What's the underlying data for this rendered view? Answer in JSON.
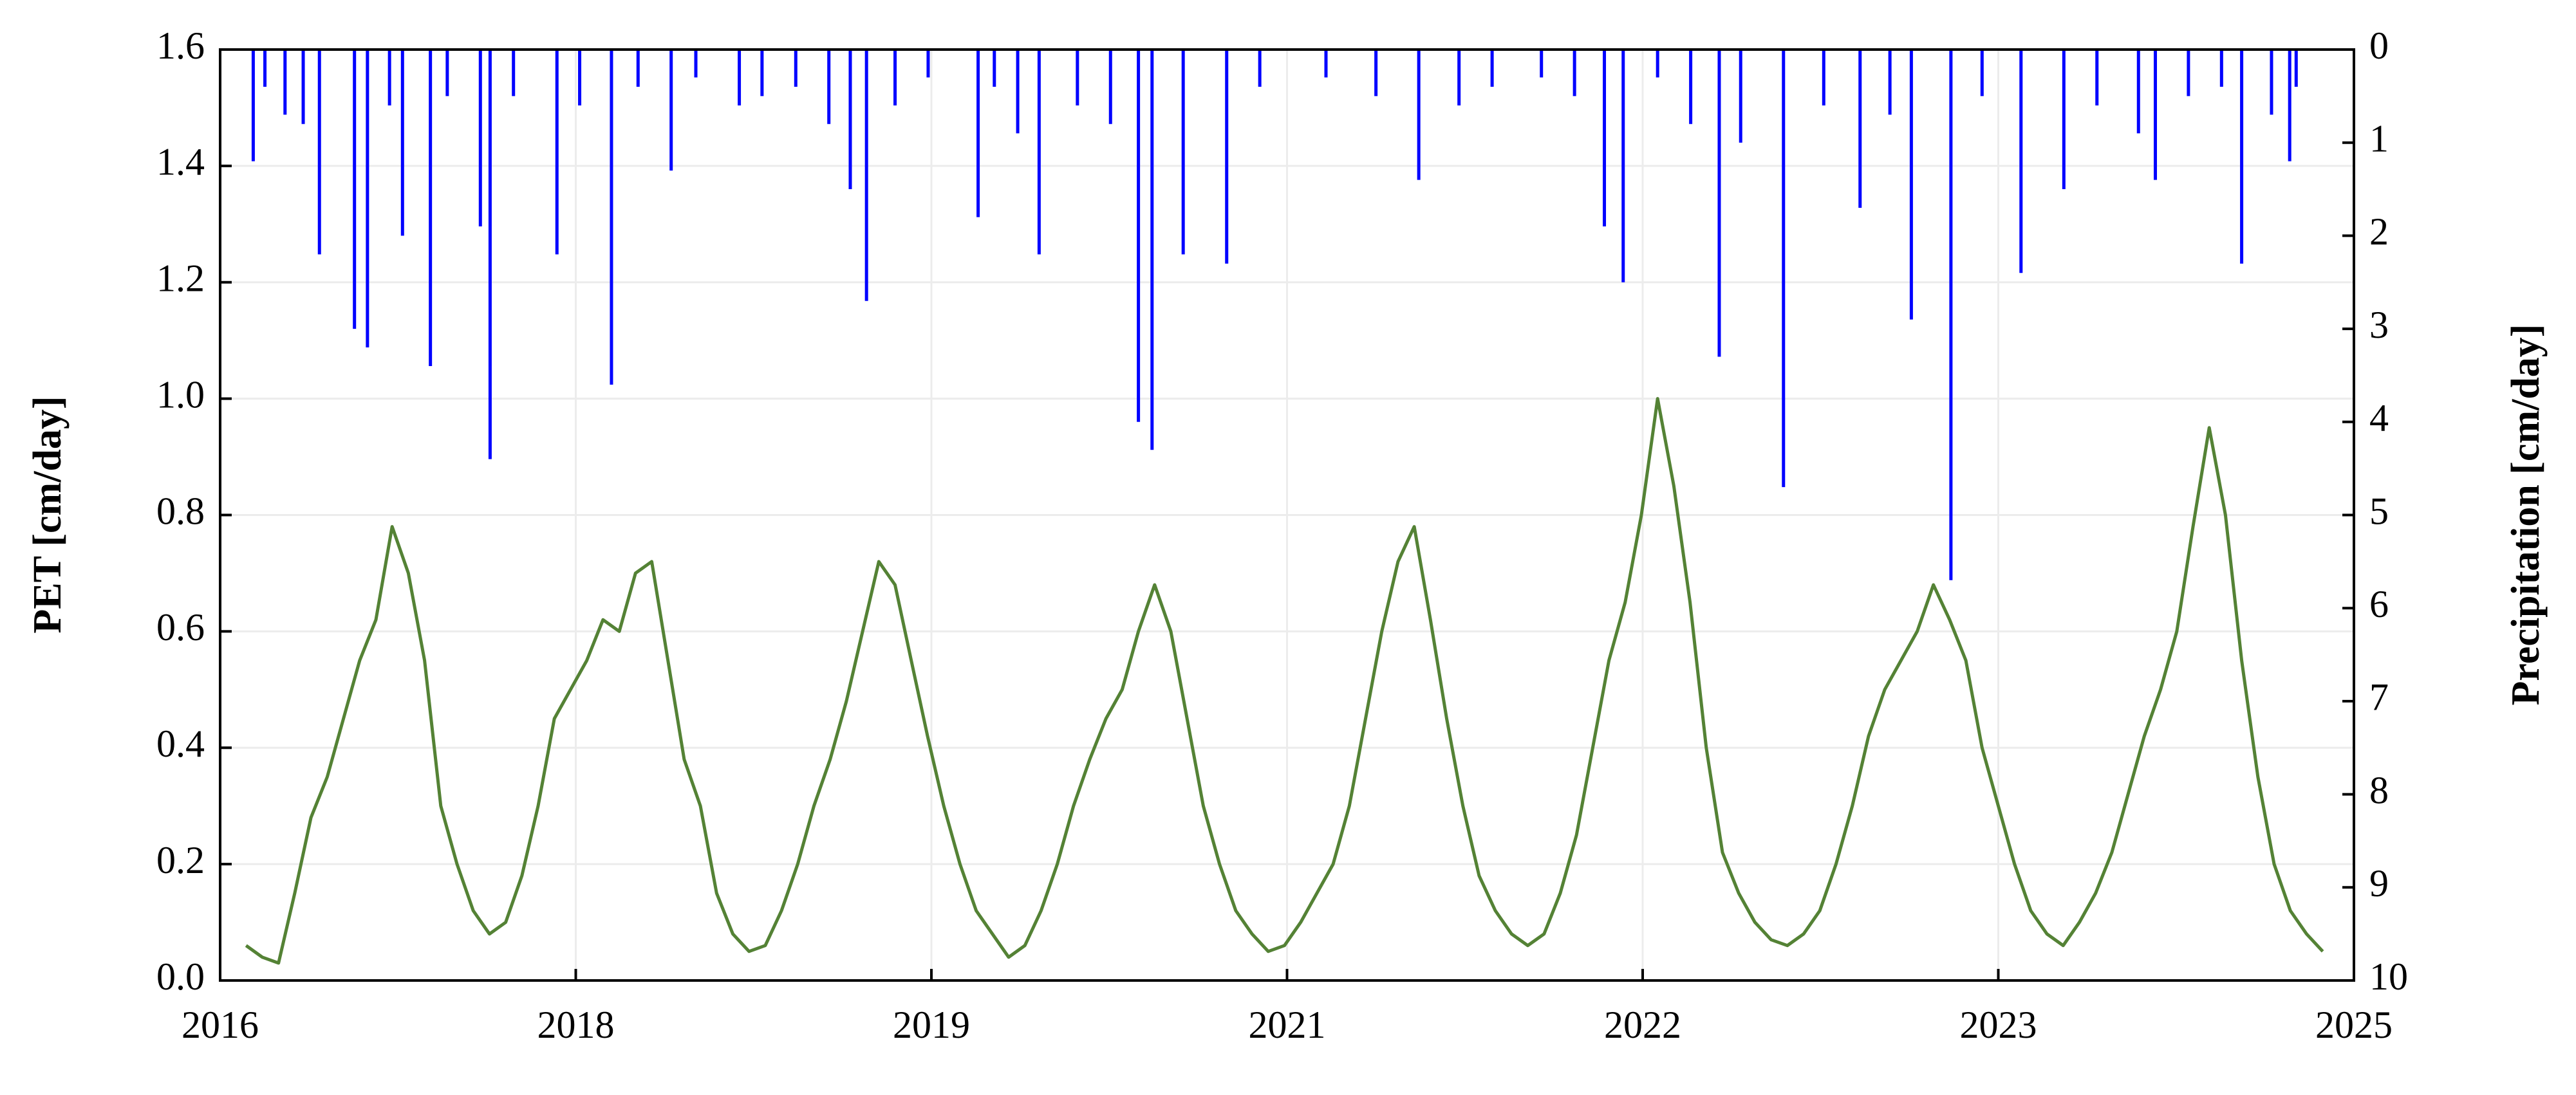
{
  "chart_data": {
    "type": "line",
    "ylabel": "PET [cm/day]",
    "y2label": "Precipitation [cm/day]",
    "xlim": [
      0,
      3288
    ],
    "xticks": [
      {
        "value": 0,
        "label": "2016"
      },
      {
        "value": 548,
        "label": "2018"
      },
      {
        "value": 1096,
        "label": "2019"
      },
      {
        "value": 1644,
        "label": "2021"
      },
      {
        "value": 2192,
        "label": "2022"
      },
      {
        "value": 2740,
        "label": "2023"
      },
      {
        "value": 3288,
        "label": "2025"
      }
    ],
    "ylim": [
      0,
      1.6
    ],
    "yticks": [
      {
        "value": 0,
        "label": "0.0"
      },
      {
        "value": 0.2,
        "label": "0.2"
      },
      {
        "value": 0.4,
        "label": "0.4"
      },
      {
        "value": 0.6,
        "label": "0.6"
      },
      {
        "value": 0.8,
        "label": "0.8"
      },
      {
        "value": 1,
        "label": "1.0"
      },
      {
        "value": 1.2,
        "label": "1.2"
      },
      {
        "value": 1.4,
        "label": "1.4"
      },
      {
        "value": 1.6,
        "label": "1.6"
      }
    ],
    "y2lim": [
      10,
      0
    ],
    "y2ticks": [
      0,
      1,
      2,
      3,
      4,
      5,
      6,
      7,
      8,
      9,
      10
    ],
    "grid": true,
    "series": [
      {
        "color": "#548235",
        "axis": "y",
        "style": "line",
        "x": [
          40,
          65,
          90,
          115,
          140,
          165,
          190,
          215,
          240,
          265,
          290,
          315,
          340,
          365,
          390,
          415,
          440,
          465,
          490,
          515,
          540,
          565,
          590,
          615,
          640,
          665,
          690,
          715,
          740,
          765,
          790,
          815,
          840,
          865,
          890,
          915,
          940,
          965,
          990,
          1015,
          1040,
          1065,
          1090,
          1115,
          1140,
          1165,
          1190,
          1215,
          1240,
          1265,
          1290,
          1315,
          1340,
          1365,
          1390,
          1415,
          1440,
          1465,
          1490,
          1515,
          1540,
          1565,
          1590,
          1615,
          1640,
          1665,
          1690,
          1715,
          1740,
          1765,
          1790,
          1815,
          1840,
          1865,
          1890,
          1915,
          1940,
          1965,
          1990,
          2015,
          2040,
          2065,
          2090,
          2115,
          2140,
          2165,
          2190,
          2215,
          2240,
          2265,
          2290,
          2315,
          2340,
          2365,
          2390,
          2415,
          2440,
          2465,
          2490,
          2515,
          2540,
          2565,
          2590,
          2615,
          2640,
          2665,
          2690,
          2715,
          2740,
          2765,
          2790,
          2815,
          2840,
          2865,
          2890,
          2915,
          2940,
          2965,
          2990,
          3015,
          3040,
          3065,
          3090,
          3115,
          3140,
          3165,
          3190,
          3215,
          3240
        ],
        "values": [
          0.06,
          0.04,
          0.03,
          0.15,
          0.28,
          0.35,
          0.45,
          0.55,
          0.62,
          0.78,
          0.7,
          0.55,
          0.3,
          0.2,
          0.12,
          0.08,
          0.1,
          0.18,
          0.3,
          0.45,
          0.5,
          0.55,
          0.62,
          0.6,
          0.7,
          0.72,
          0.55,
          0.38,
          0.3,
          0.15,
          0.08,
          0.05,
          0.06,
          0.12,
          0.2,
          0.3,
          0.38,
          0.48,
          0.6,
          0.72,
          0.68,
          0.55,
          0.42,
          0.3,
          0.2,
          0.12,
          0.08,
          0.04,
          0.06,
          0.12,
          0.2,
          0.3,
          0.38,
          0.45,
          0.5,
          0.6,
          0.68,
          0.6,
          0.45,
          0.3,
          0.2,
          0.12,
          0.08,
          0.05,
          0.06,
          0.1,
          0.15,
          0.2,
          0.3,
          0.45,
          0.6,
          0.72,
          0.78,
          0.62,
          0.45,
          0.3,
          0.18,
          0.12,
          0.08,
          0.06,
          0.08,
          0.15,
          0.25,
          0.4,
          0.55,
          0.65,
          0.8,
          1.0,
          0.85,
          0.65,
          0.4,
          0.22,
          0.15,
          0.1,
          0.07,
          0.06,
          0.08,
          0.12,
          0.2,
          0.3,
          0.42,
          0.5,
          0.55,
          0.6,
          0.68,
          0.62,
          0.55,
          0.4,
          0.3,
          0.2,
          0.12,
          0.08,
          0.06,
          0.1,
          0.15,
          0.22,
          0.32,
          0.42,
          0.5,
          0.6,
          0.78,
          0.95,
          0.8,
          0.55,
          0.35,
          0.2,
          0.12,
          0.08,
          0.05
        ]
      },
      {
        "color": "#0000ff",
        "axis": "y2",
        "style": "spikes",
        "x": [
          51,
          69,
          100,
          128,
          153,
          207,
          227,
          261,
          281,
          324,
          350,
          401,
          416,
          452,
          519,
          554,
          603,
          644,
          695,
          733,
          800,
          835,
          887,
          938,
          971,
          996,
          1040,
          1091,
          1168,
          1193,
          1229,
          1262,
          1321,
          1372,
          1415,
          1436,
          1484,
          1551,
          1602,
          1704,
          1781,
          1847,
          1909,
          1960,
          2036,
          2087,
          2133,
          2162,
          2215,
          2266,
          2310,
          2343,
          2409,
          2471,
          2527,
          2573,
          2606,
          2667,
          2715,
          2775,
          2841,
          2892,
          2956,
          2982,
          3033,
          3084,
          3115,
          3161,
          3189,
          3199
        ],
        "values": [
          1.2,
          0.4,
          0.7,
          0.8,
          2.2,
          3.0,
          3.2,
          0.6,
          2.0,
          3.4,
          0.5,
          1.9,
          4.4,
          0.5,
          2.2,
          0.6,
          3.6,
          0.4,
          1.3,
          0.3,
          0.6,
          0.5,
          0.4,
          0.8,
          1.5,
          2.7,
          0.6,
          0.3,
          1.8,
          0.4,
          0.9,
          2.2,
          0.6,
          0.8,
          4.0,
          4.3,
          2.2,
          2.3,
          0.4,
          0.3,
          0.5,
          1.4,
          0.6,
          0.4,
          0.3,
          0.5,
          1.9,
          2.5,
          0.3,
          0.8,
          3.3,
          1.0,
          4.7,
          0.6,
          1.7,
          0.7,
          2.9,
          5.7,
          0.5,
          2.4,
          1.5,
          0.6,
          0.9,
          1.4,
          0.5,
          0.4,
          2.3,
          0.7,
          1.2,
          0.4
        ]
      }
    ]
  }
}
